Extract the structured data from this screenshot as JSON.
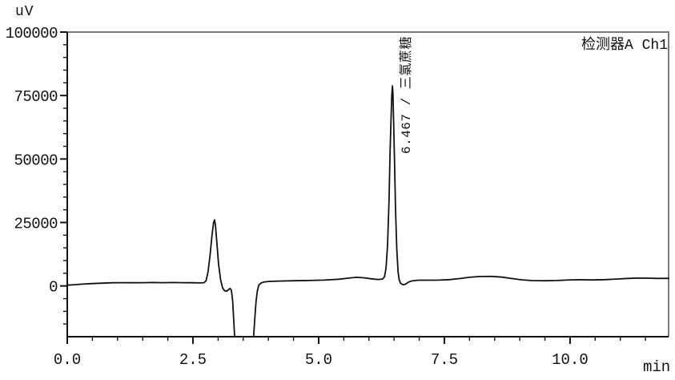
{
  "chart_data": {
    "type": "line",
    "title": "",
    "detector_label": "检测器A Ch1",
    "y_unit": "uV",
    "x_unit": "min",
    "xlim": [
      0,
      11.96
    ],
    "ylim": [
      -20000,
      100000
    ],
    "grid": false,
    "legend_position": "top-right",
    "x_axis": {
      "major_ticks": [
        0,
        2.5,
        5.0,
        7.5,
        10.0
      ],
      "major_labels": [
        "0.0",
        "2.5",
        "5.0",
        "7.5",
        "10.0"
      ],
      "minor_step": 0.5
    },
    "y_axis": {
      "major_ticks": [
        0,
        25000,
        50000,
        75000,
        100000
      ],
      "major_labels": [
        "0",
        "25000",
        "50000",
        "75000",
        "100000"
      ],
      "minor_step": 5000
    },
    "peaks": [
      {
        "retention_time": 6.467,
        "compound": "三氯蔗糖",
        "label": "6.467 / 三氯蔗糖",
        "apex_uv": 78800
      },
      {
        "retention_time": 2.93,
        "compound": "",
        "label": "",
        "apex_uv": 26000
      }
    ],
    "series": [
      {
        "name": "检测器A Ch1",
        "color": "#111111",
        "points": [
          [
            0.0,
            300
          ],
          [
            0.15,
            500
          ],
          [
            0.3,
            700
          ],
          [
            0.5,
            950
          ],
          [
            0.7,
            1100
          ],
          [
            0.9,
            1250
          ],
          [
            1.1,
            1300
          ],
          [
            1.3,
            1250
          ],
          [
            1.5,
            1300
          ],
          [
            1.7,
            1350
          ],
          [
            1.9,
            1300
          ],
          [
            2.1,
            1350
          ],
          [
            2.3,
            1300
          ],
          [
            2.5,
            1250
          ],
          [
            2.65,
            1200
          ],
          [
            2.72,
            1300
          ],
          [
            2.76,
            2000
          ],
          [
            2.8,
            5500
          ],
          [
            2.84,
            12000
          ],
          [
            2.88,
            20000
          ],
          [
            2.91,
            25000
          ],
          [
            2.93,
            26000
          ],
          [
            2.95,
            23500
          ],
          [
            2.98,
            16000
          ],
          [
            3.01,
            8500
          ],
          [
            3.05,
            2500
          ],
          [
            3.09,
            -800
          ],
          [
            3.13,
            -1900
          ],
          [
            3.17,
            -2100
          ],
          [
            3.21,
            -1400
          ],
          [
            3.24,
            -1000
          ],
          [
            3.265,
            -1700
          ],
          [
            3.29,
            -6000
          ],
          [
            3.31,
            -13000
          ],
          [
            3.335,
            -22000
          ],
          [
            3.45,
            -28000
          ],
          [
            3.6,
            -28000
          ],
          [
            3.7,
            -22000
          ],
          [
            3.73,
            -13000
          ],
          [
            3.755,
            -6000
          ],
          [
            3.78,
            -2000
          ],
          [
            3.81,
            300
          ],
          [
            3.85,
            1100
          ],
          [
            3.9,
            1500
          ],
          [
            4.0,
            1750
          ],
          [
            4.2,
            1900
          ],
          [
            4.5,
            2050
          ],
          [
            4.8,
            2150
          ],
          [
            5.1,
            2300
          ],
          [
            5.4,
            2650
          ],
          [
            5.6,
            3100
          ],
          [
            5.75,
            3400
          ],
          [
            5.9,
            3200
          ],
          [
            6.05,
            2800
          ],
          [
            6.18,
            2550
          ],
          [
            6.27,
            2700
          ],
          [
            6.31,
            3600
          ],
          [
            6.34,
            7000
          ],
          [
            6.37,
            16000
          ],
          [
            6.4,
            34000
          ],
          [
            6.42,
            52000
          ],
          [
            6.44,
            66000
          ],
          [
            6.455,
            75000
          ],
          [
            6.467,
            78800
          ],
          [
            6.478,
            75500
          ],
          [
            6.49,
            66000
          ],
          [
            6.51,
            48000
          ],
          [
            6.53,
            30000
          ],
          [
            6.555,
            14000
          ],
          [
            6.58,
            5500
          ],
          [
            6.6,
            2600
          ],
          [
            6.625,
            1200
          ],
          [
            6.65,
            700
          ],
          [
            6.69,
            450
          ],
          [
            6.73,
            700
          ],
          [
            6.78,
            1400
          ],
          [
            6.84,
            1900
          ],
          [
            6.92,
            2150
          ],
          [
            7.0,
            2250
          ],
          [
            7.2,
            2250
          ],
          [
            7.4,
            2300
          ],
          [
            7.6,
            2500
          ],
          [
            7.8,
            2900
          ],
          [
            8.0,
            3400
          ],
          [
            8.2,
            3700
          ],
          [
            8.45,
            3750
          ],
          [
            8.65,
            3450
          ],
          [
            8.85,
            2900
          ],
          [
            9.05,
            2400
          ],
          [
            9.25,
            2100
          ],
          [
            9.5,
            2050
          ],
          [
            9.75,
            2150
          ],
          [
            10.0,
            2400
          ],
          [
            10.2,
            2450
          ],
          [
            10.45,
            2350
          ],
          [
            10.7,
            2500
          ],
          [
            10.95,
            2750
          ],
          [
            11.15,
            2950
          ],
          [
            11.35,
            3100
          ],
          [
            11.55,
            3050
          ],
          [
            11.75,
            2950
          ],
          [
            11.96,
            3000
          ]
        ]
      }
    ],
    "frame_color": "#7a7a7a",
    "axis_color": "#111111"
  }
}
